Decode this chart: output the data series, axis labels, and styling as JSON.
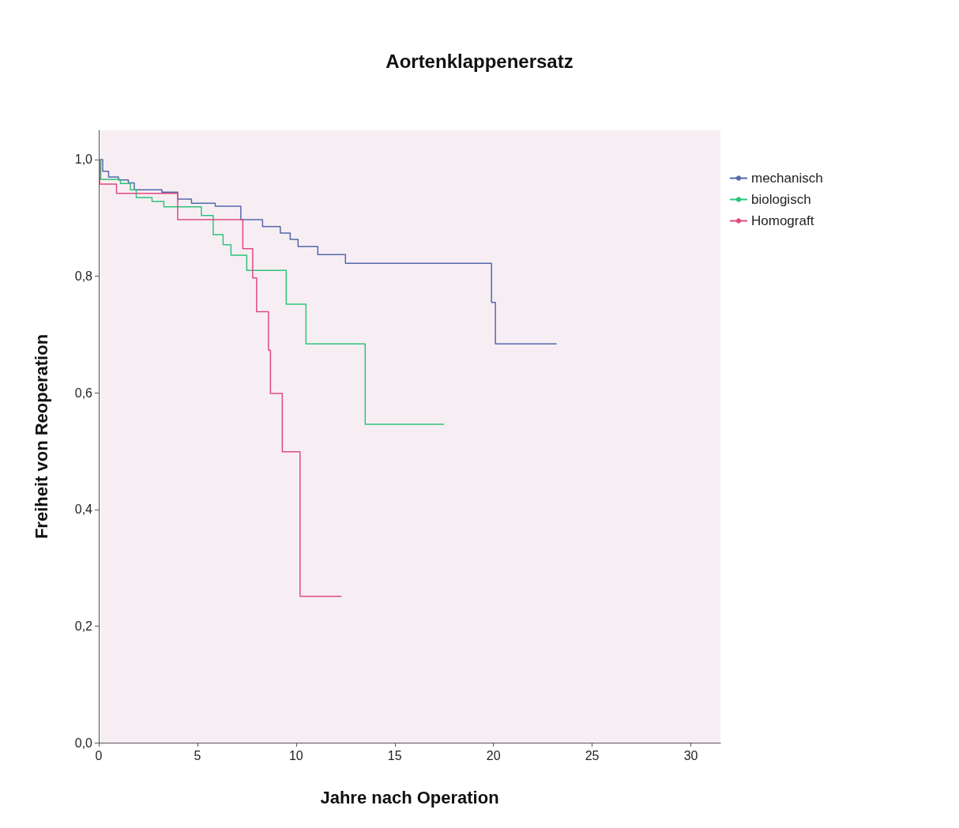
{
  "chart_data": {
    "type": "step",
    "title": "Aortenklappenersatz",
    "xlabel": "Jahre nach Operation",
    "ylabel": "Freiheit von Reoperation",
    "xlim": [
      0,
      31.5
    ],
    "ylim": [
      0,
      1.05
    ],
    "xticks": [
      0,
      5,
      10,
      15,
      20,
      25,
      30
    ],
    "yticks": [
      {
        "value": 0,
        "label": "0,0"
      },
      {
        "value": 0.2,
        "label": "0,2"
      },
      {
        "value": 0.4,
        "label": "0,4"
      },
      {
        "value": 0.6,
        "label": "0,6"
      },
      {
        "value": 0.8,
        "label": "0,8"
      },
      {
        "value": 1,
        "label": "1,0"
      }
    ],
    "grid": false,
    "legend": "top right",
    "marker": "none",
    "line_style": "solid",
    "series": [
      {
        "name": "mechanisch",
        "color": "#5468ac",
        "x": [
          0,
          0.2,
          0.5,
          1.0,
          1.5,
          1.8,
          3.2,
          4.0,
          4.7,
          5.9,
          7.2,
          8.3,
          9.2,
          9.7,
          10.1,
          11.1,
          12.5,
          19.9,
          20.1,
          23.2
        ],
        "values": [
          1.0,
          0.98,
          0.97,
          0.965,
          0.96,
          0.948,
          0.944,
          0.932,
          0.925,
          0.92,
          0.897,
          0.885,
          0.874,
          0.863,
          0.851,
          0.837,
          0.822,
          0.755,
          0.684,
          0.684
        ]
      },
      {
        "name": "biologisch",
        "color": "#2ec27a",
        "x": [
          0,
          0.1,
          1.1,
          1.6,
          1.9,
          2.7,
          3.3,
          5.2,
          5.8,
          6.3,
          6.7,
          7.5,
          9.5,
          10.5,
          13.5,
          17.5
        ],
        "values": [
          1.0,
          0.966,
          0.959,
          0.948,
          0.935,
          0.928,
          0.919,
          0.904,
          0.871,
          0.854,
          0.836,
          0.81,
          0.752,
          0.684,
          0.546,
          0.546
        ]
      },
      {
        "name": "Homograft",
        "color": "#e04a80",
        "x": [
          0,
          0.05,
          0.9,
          4.0,
          7.3,
          7.8,
          8.0,
          8.6,
          8.7,
          9.3,
          10.2,
          12.3
        ],
        "values": [
          1.0,
          0.958,
          0.942,
          0.897,
          0.847,
          0.797,
          0.739,
          0.673,
          0.599,
          0.499,
          0.251,
          0.251
        ]
      }
    ]
  }
}
